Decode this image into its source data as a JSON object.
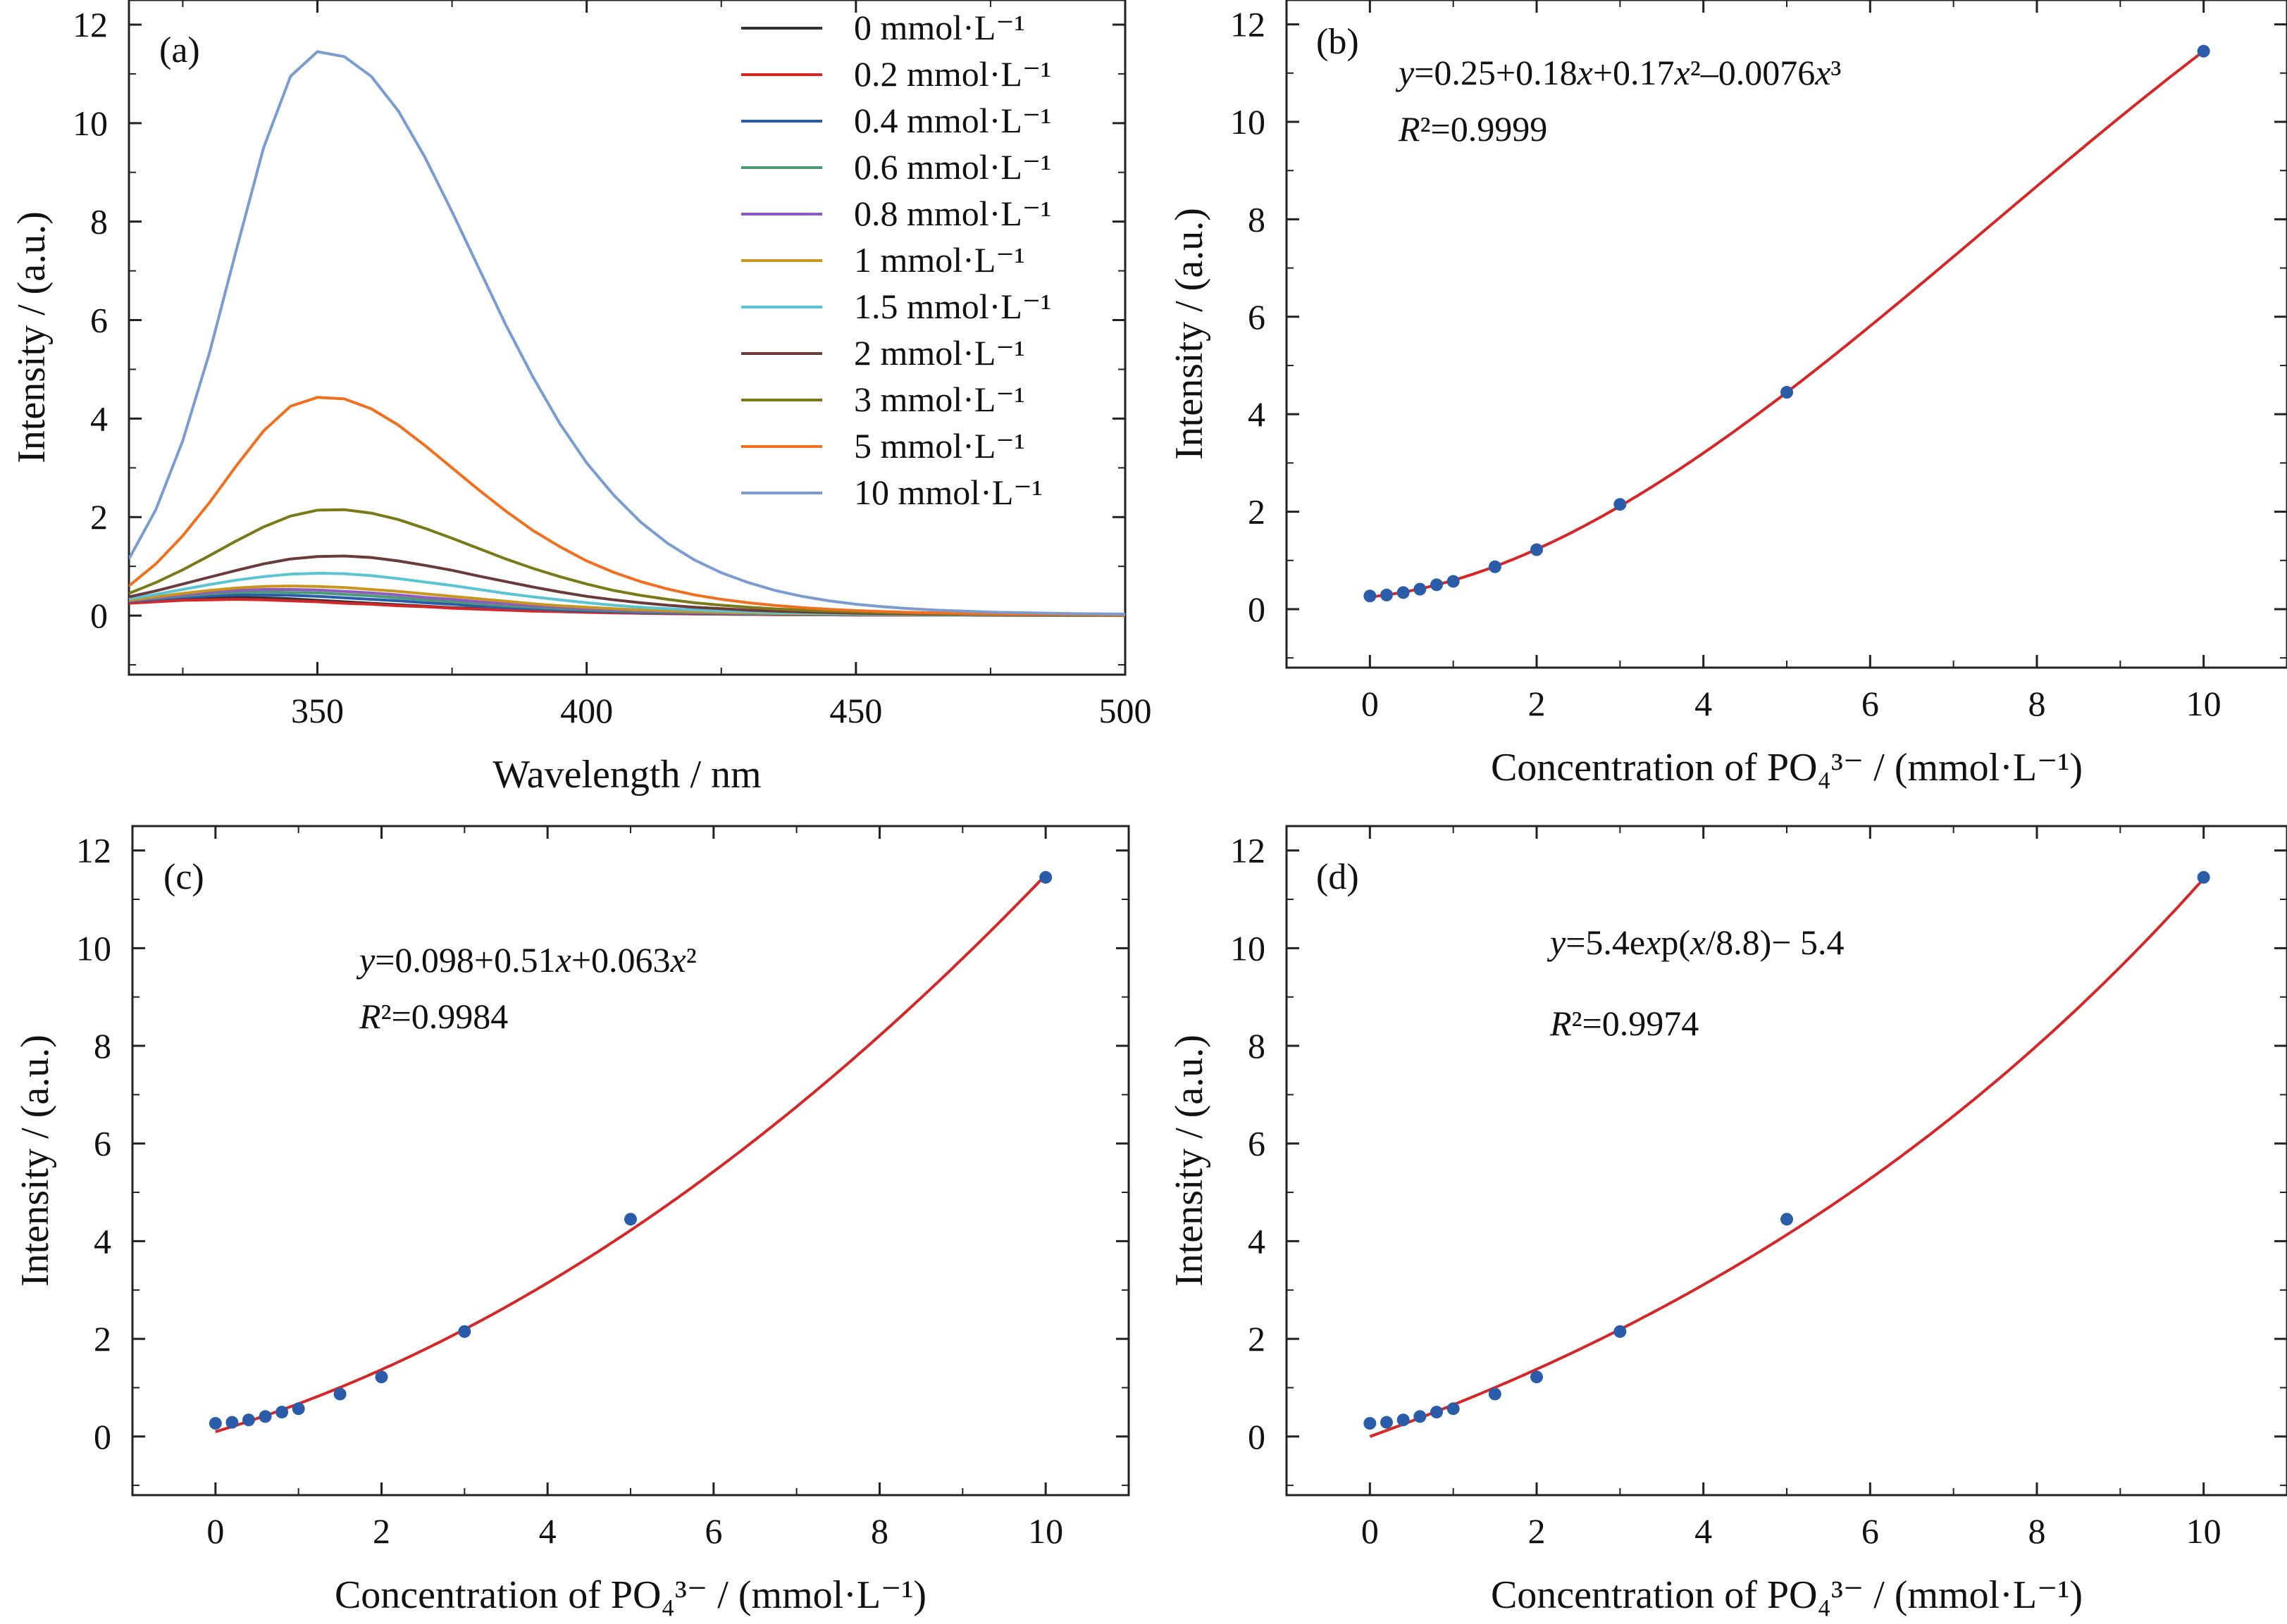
{
  "chart_data": [
    {
      "type": "line",
      "panel_label": "(a)",
      "xlabel": "Wavelength / nm",
      "ylabel": "Intensity / (a.u.)",
      "xlim": [
        315,
        500
      ],
      "ylim": [
        -1.2,
        12.5
      ],
      "xticks": [
        350,
        400,
        450,
        500
      ],
      "yticks": [
        0,
        2,
        4,
        6,
        8,
        10,
        12
      ],
      "grid": false,
      "legend_position": "top-right",
      "x": [
        315,
        320,
        325,
        330,
        335,
        340,
        345,
        350,
        355,
        360,
        365,
        370,
        375,
        380,
        385,
        390,
        395,
        400,
        405,
        410,
        415,
        420,
        425,
        430,
        435,
        440,
        445,
        450,
        455,
        460,
        465,
        470,
        475,
        480,
        485,
        490,
        495,
        500
      ],
      "series": [
        {
          "name": "0 mmol·L⁻¹",
          "color": "#333333",
          "values": [
            0.27,
            0.31,
            0.34,
            0.36,
            0.37,
            0.36,
            0.34,
            0.31,
            0.28,
            0.25,
            0.22,
            0.19,
            0.16,
            0.14,
            0.12,
            0.1,
            0.085,
            0.07,
            0.06,
            0.05,
            0.042,
            0.035,
            0.03,
            0.025,
            0.021,
            0.018,
            0.015,
            0.013,
            0.011,
            0.01,
            0.009,
            0.008,
            0.007,
            0.006,
            0.006,
            0.005,
            0.005,
            0.004
          ]
        },
        {
          "name": "0.2 mmol·L⁻¹",
          "color": "#d62728",
          "values": [
            0.25,
            0.28,
            0.31,
            0.32,
            0.33,
            0.32,
            0.3,
            0.28,
            0.25,
            0.23,
            0.2,
            0.18,
            0.15,
            0.13,
            0.11,
            0.09,
            0.08,
            0.065,
            0.055,
            0.047,
            0.04,
            0.034,
            0.029,
            0.024,
            0.02,
            0.017,
            0.015,
            0.013,
            0.011,
            0.01,
            0.009,
            0.008,
            0.007,
            0.006,
            0.006,
            0.005,
            0.005,
            0.004
          ]
        },
        {
          "name": "0.4 mmol·L⁻¹",
          "color": "#2a5caa",
          "values": [
            0.29,
            0.33,
            0.37,
            0.4,
            0.42,
            0.42,
            0.41,
            0.39,
            0.36,
            0.33,
            0.3,
            0.26,
            0.23,
            0.19,
            0.16,
            0.14,
            0.11,
            0.095,
            0.08,
            0.065,
            0.055,
            0.046,
            0.039,
            0.033,
            0.028,
            0.024,
            0.02,
            0.017,
            0.015,
            0.013,
            0.011,
            0.01,
            0.009,
            0.008,
            0.007,
            0.006,
            0.006,
            0.005
          ]
        },
        {
          "name": "0.6 mmol·L⁻¹",
          "color": "#4a9a78",
          "values": [
            0.3,
            0.35,
            0.4,
            0.44,
            0.47,
            0.48,
            0.47,
            0.46,
            0.43,
            0.4,
            0.36,
            0.32,
            0.28,
            0.24,
            0.2,
            0.17,
            0.14,
            0.12,
            0.1,
            0.08,
            0.068,
            0.057,
            0.048,
            0.04,
            0.034,
            0.029,
            0.024,
            0.021,
            0.018,
            0.015,
            0.013,
            0.012,
            0.01,
            0.009,
            0.008,
            0.007,
            0.006,
            0.006
          ]
        },
        {
          "name": "0.8 mmol·L⁻¹",
          "color": "#8e5bbf",
          "values": [
            0.3,
            0.36,
            0.42,
            0.47,
            0.51,
            0.53,
            0.53,
            0.52,
            0.49,
            0.46,
            0.42,
            0.37,
            0.33,
            0.28,
            0.24,
            0.2,
            0.17,
            0.14,
            0.12,
            0.095,
            0.08,
            0.067,
            0.056,
            0.047,
            0.04,
            0.034,
            0.029,
            0.024,
            0.021,
            0.018,
            0.015,
            0.013,
            0.012,
            0.01,
            0.009,
            0.008,
            0.007,
            0.006
          ]
        },
        {
          "name": "1 mmol·L⁻¹",
          "color": "#c8961e",
          "values": [
            0.31,
            0.38,
            0.45,
            0.51,
            0.56,
            0.59,
            0.6,
            0.59,
            0.57,
            0.53,
            0.49,
            0.44,
            0.39,
            0.34,
            0.29,
            0.24,
            0.2,
            0.17,
            0.14,
            0.115,
            0.095,
            0.08,
            0.066,
            0.055,
            0.046,
            0.039,
            0.033,
            0.028,
            0.024,
            0.02,
            0.017,
            0.015,
            0.013,
            0.011,
            0.01,
            0.009,
            0.008,
            0.007
          ]
        },
        {
          "name": "1.5 mmol·L⁻¹",
          "color": "#5bc4d4",
          "values": [
            0.34,
            0.43,
            0.53,
            0.63,
            0.72,
            0.79,
            0.84,
            0.86,
            0.85,
            0.81,
            0.75,
            0.68,
            0.61,
            0.53,
            0.45,
            0.38,
            0.32,
            0.26,
            0.21,
            0.17,
            0.14,
            0.115,
            0.094,
            0.077,
            0.063,
            0.052,
            0.043,
            0.036,
            0.03,
            0.025,
            0.021,
            0.018,
            0.015,
            0.013,
            0.011,
            0.01,
            0.009,
            0.008
          ]
        },
        {
          "name": "2 mmol·L⁻¹",
          "color": "#6b3a3a",
          "values": [
            0.38,
            0.5,
            0.64,
            0.78,
            0.92,
            1.05,
            1.15,
            1.2,
            1.21,
            1.18,
            1.11,
            1.02,
            0.92,
            0.8,
            0.69,
            0.58,
            0.48,
            0.39,
            0.32,
            0.26,
            0.21,
            0.17,
            0.14,
            0.11,
            0.09,
            0.074,
            0.061,
            0.05,
            0.042,
            0.035,
            0.029,
            0.025,
            0.021,
            0.018,
            0.015,
            0.013,
            0.011,
            0.01
          ]
        },
        {
          "name": "3 mmol·L⁻¹",
          "color": "#7a7a1a",
          "values": [
            0.45,
            0.67,
            0.93,
            1.22,
            1.52,
            1.8,
            2.02,
            2.14,
            2.15,
            2.08,
            1.95,
            1.77,
            1.57,
            1.36,
            1.15,
            0.96,
            0.79,
            0.64,
            0.51,
            0.41,
            0.33,
            0.26,
            0.21,
            0.17,
            0.135,
            0.11,
            0.088,
            0.072,
            0.059,
            0.048,
            0.04,
            0.033,
            0.027,
            0.023,
            0.019,
            0.016,
            0.014,
            0.012
          ]
        },
        {
          "name": "5 mmol·L⁻¹",
          "color": "#f07020",
          "values": [
            0.6,
            1.05,
            1.62,
            2.3,
            3.05,
            3.75,
            4.25,
            4.43,
            4.4,
            4.2,
            3.87,
            3.45,
            3.0,
            2.55,
            2.12,
            1.73,
            1.4,
            1.11,
            0.88,
            0.69,
            0.54,
            0.42,
            0.33,
            0.26,
            0.205,
            0.162,
            0.128,
            0.102,
            0.082,
            0.066,
            0.054,
            0.044,
            0.036,
            0.03,
            0.025,
            0.021,
            0.017,
            0.015
          ]
        },
        {
          "name": "10 mmol·L⁻¹",
          "color": "#7a9cd0",
          "values": [
            1.15,
            2.15,
            3.55,
            5.35,
            7.45,
            9.5,
            10.95,
            11.45,
            11.35,
            10.95,
            10.25,
            9.3,
            8.2,
            7.05,
            5.9,
            4.85,
            3.9,
            3.1,
            2.45,
            1.9,
            1.47,
            1.13,
            0.87,
            0.67,
            0.51,
            0.39,
            0.3,
            0.23,
            0.18,
            0.14,
            0.11,
            0.09,
            0.07,
            0.06,
            0.05,
            0.04,
            0.035,
            0.03
          ]
        }
      ]
    },
    {
      "type": "scatter",
      "panel_label": "(b)",
      "xlabel": "Concentration of PO₄³⁻ / (mmol·L⁻¹)",
      "ylabel": "Intensity / (a.u.)",
      "xlim": [
        -1,
        11
      ],
      "ylim": [
        -1.2,
        12.5
      ],
      "xticks": [
        0,
        2,
        4,
        6,
        8,
        10
      ],
      "yticks": [
        0,
        2,
        4,
        6,
        8,
        10,
        12
      ],
      "grid": false,
      "fit": {
        "model": "poly3",
        "coeffs": [
          0.25,
          0.18,
          0.17,
          -0.0076
        ],
        "color": "#d62728"
      },
      "equation": "y=0.25+0.18x+0.17x²–0.0076x³",
      "r2": "R²=0.9999",
      "points": {
        "x": [
          0,
          0.2,
          0.4,
          0.6,
          0.8,
          1,
          1.5,
          2,
          3,
          5,
          10
        ],
        "y": [
          0.27,
          0.29,
          0.34,
          0.41,
          0.5,
          0.57,
          0.87,
          1.22,
          2.15,
          4.45,
          11.45
        ],
        "color": "#2a5caa"
      }
    },
    {
      "type": "scatter",
      "panel_label": "(c)",
      "xlabel": "Concentration of PO₄³⁻ / (mmol·L⁻¹)",
      "ylabel": "Intensity / (a.u.)",
      "xlim": [
        -1,
        11
      ],
      "ylim": [
        -1.2,
        12.5
      ],
      "xticks": [
        0,
        2,
        4,
        6,
        8,
        10
      ],
      "yticks": [
        0,
        2,
        4,
        6,
        8,
        10,
        12
      ],
      "grid": false,
      "fit": {
        "model": "poly2",
        "coeffs": [
          0.098,
          0.51,
          0.063
        ],
        "color": "#d62728"
      },
      "equation": "y=0.098+0.51x+0.063x²",
      "r2": "R²=0.9984",
      "points": {
        "x": [
          0,
          0.2,
          0.4,
          0.6,
          0.8,
          1,
          1.5,
          2,
          3,
          5,
          10
        ],
        "y": [
          0.27,
          0.29,
          0.34,
          0.41,
          0.5,
          0.57,
          0.87,
          1.22,
          2.15,
          4.45,
          11.45
        ],
        "color": "#2a5caa"
      }
    },
    {
      "type": "scatter",
      "panel_label": "(d)",
      "xlabel": "Concentration of PO₄³⁻ / (mmol·L⁻¹)",
      "ylabel": "Intensity / (a.u.)",
      "xlim": [
        -1,
        11
      ],
      "ylim": [
        -1.2,
        12.5
      ],
      "xticks": [
        0,
        2,
        4,
        6,
        8,
        10
      ],
      "yticks": [
        0,
        2,
        4,
        6,
        8,
        10,
        12
      ],
      "grid": false,
      "fit": {
        "model": "exp",
        "coeffs": [
          5.4,
          8.8,
          -5.4
        ],
        "color": "#d62728"
      },
      "equation": "y=5.4exp(x/8.8)− 5.4",
      "r2": "R²=0.9974",
      "points": {
        "x": [
          0,
          0.2,
          0.4,
          0.6,
          0.8,
          1,
          1.5,
          2,
          3,
          5,
          10
        ],
        "y": [
          0.27,
          0.29,
          0.34,
          0.41,
          0.5,
          0.57,
          0.87,
          1.22,
          2.15,
          4.45,
          11.45
        ],
        "color": "#2a5caa"
      }
    }
  ]
}
